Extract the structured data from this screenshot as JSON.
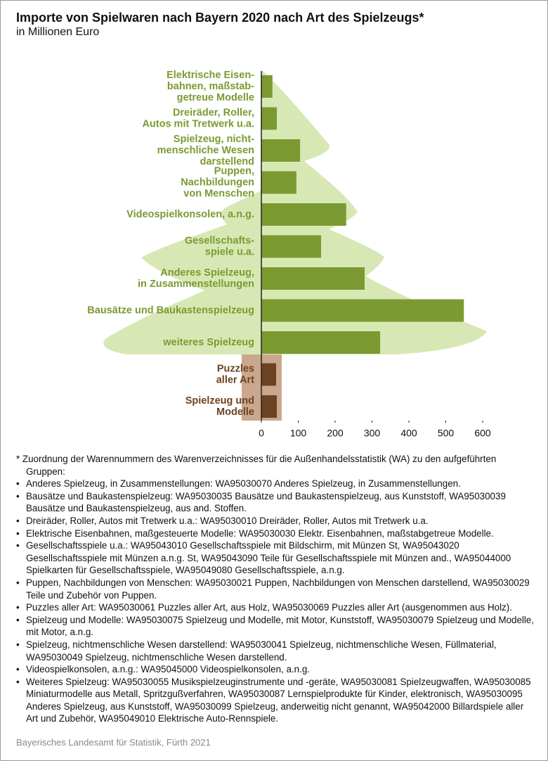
{
  "chart_data": {
    "type": "barh",
    "title": "Importe von Spielwaren nach Bayern 2020 nach Art des Spielzeugs*",
    "subtitle": "in Millionen Euro",
    "categories": [
      "Elektrische Eisen-\nbahnen, maßstab-\ngetreue Modelle",
      "Dreiräder, Roller,\nAutos mit Tretwerk u.a.",
      "Spielzeug, nicht-\nmenschliche Wesen\ndarstellend",
      "Puppen,\nNachbildungen\nvon Menschen",
      "Videospielkonsolen, a.n.g.",
      "Gesellschafts-\nspiele u.a.",
      "Anderes Spielzeug,\nin Zusammenstellungen",
      "Bausätze und Baukastenspielzeug",
      "weiteres Spielzeug",
      "Puzzles\naller Art",
      "Spielzeug und\nModelle"
    ],
    "values": [
      30,
      42,
      105,
      95,
      230,
      162,
      280,
      549,
      322,
      40,
      42
    ],
    "colors": [
      "#7b9a31",
      "#7b9a31",
      "#7b9a31",
      "#7b9a31",
      "#7b9a31",
      "#7b9a31",
      "#7b9a31",
      "#7b9a31",
      "#7b9a31",
      "#6b4322",
      "#6b4322"
    ],
    "xlim": [
      0,
      600
    ],
    "xticks": [
      0,
      100,
      200,
      300,
      400,
      500,
      600
    ]
  },
  "footnote": {
    "heading": "* Zuordnung der Warennummern des Warenverzeichnisses für die Außenhandelsstatistik (WA) zu den aufgeführten Gruppen:",
    "items": [
      "Anderes Spielzeug, in Zusammenstellungen: WA95030070 Anderes Spielzeug, in Zusammenstellungen.",
      "Bausätze und Baukastenspielzeug: WA95030035 Bausätze und Baukastenspielzeug, aus Kunststoff, WA95030039 Bausätze und Baukastenspielzeug, aus and. Stoffen.",
      "Dreiräder, Roller, Autos mit Tretwerk u.a.: WA95030010 Dreiräder, Roller, Autos mit Tretwerk u.a.",
      "Elektrische Eisenbahnen, maßgesteuerte Modelle: WA95030030 Elektr. Eisenbahnen, maßstabgetreue Modelle.",
      "Gesellschaftsspiele u.a.: WA95043010 Gesellschaftsspiele mit Bildschirm, mit Münzen St, WA95043020 Gesellschaftsspiele mit Münzen a.n.g. St, WA95043090 Teile für Gesellschaftsspiele mit Münzen and., WA95044000 Spielkarten für Gesellschaftsspiele, WA95049080 Gesellschaftsspiele, a.n.g.",
      "Puppen, Nachbildungen von Menschen: WA95030021 Puppen, Nachbildungen von Menschen darstellend, WA95030029 Teile und Zubehör von Puppen.",
      "Puzzles aller Art: WA95030061 Puzzles aller Art, aus Holz, WA95030069 Puzzles aller Art (ausgenommen aus Holz).",
      "Spielzeug und Modelle: WA95030075 Spielzeug und Modelle, mit Motor, Kunststoff, WA95030079 Spielzeug und Modelle, mit Motor, a.n.g.",
      "Spielzeug, nichtmenschliche Wesen darstellend: WA95030041 Spielzeug, nichtmenschliche Wesen, Füllmaterial, WA95030049 Spielzeug, nichtmenschliche Wesen darstellend.",
      "Videospielkonsolen, a.n.g.: WA95045000 Videospielkonsolen, a.n.g.",
      "Weiteres Spielzeug: WA95030055 Musikspielzeuginstrumente und -geräte, WA95030081 Spielzeugwaffen, WA95030085 Miniaturmodelle aus Metall, Spritzgußverfahren, WA95030087 Lernspielprodukte für Kinder, elektronisch, WA95030095 Anderes Spielzeug, aus Kunststoff, WA95030099 Spielzeug, anderweitig nicht genannt, WA95042000 Billardspiele aller Art und Zubehör, WA95049010 Elektrische Auto-Rennspiele."
    ]
  },
  "source": "Bayerisches Landesamt für Statistik, Fürth 2021"
}
